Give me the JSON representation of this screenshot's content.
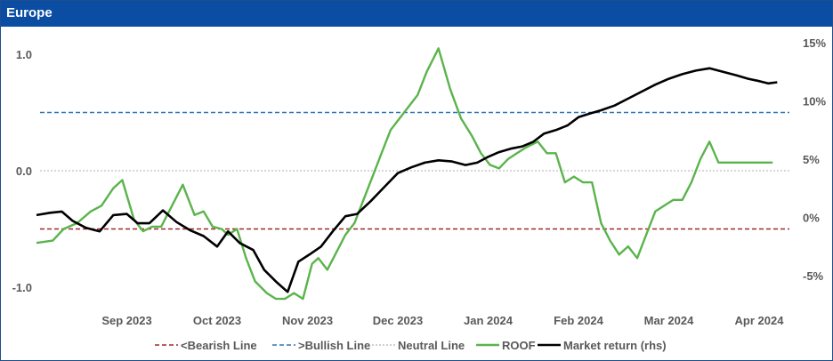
{
  "title": "Europe",
  "chart_data": {
    "type": "line",
    "y_left": {
      "ticks": [
        1.0,
        0.0,
        -1.0
      ],
      "tick_labels": [
        "1.0",
        "0.0",
        "-1.0"
      ],
      "range": [
        -1.3,
        1.0
      ]
    },
    "y_right": {
      "ticks": [
        15,
        10,
        5,
        0,
        -5
      ],
      "tick_labels": [
        "15%",
        "10%",
        "5%",
        "0%",
        "-5%"
      ],
      "range": [
        -7.5,
        15
      ]
    },
    "x_labels": [
      "Sep 2023",
      "Oct 2023",
      "Nov 2023",
      "Dec 2023",
      "Jan 2024",
      "Feb 2024",
      "Mar 2024",
      "Apr 2024"
    ],
    "x_range": [
      0,
      8.3
    ],
    "x_label_positions": [
      1,
      2,
      3,
      4,
      5,
      6,
      7,
      8
    ],
    "reference_lines": [
      {
        "name": "<Bearish Line",
        "axis": "left",
        "value": -0.5,
        "color": "#a02828",
        "style": "dashed"
      },
      {
        "name": ">Bullish Line",
        "axis": "left",
        "value": 0.5,
        "color": "#2e74b5",
        "style": "dashed"
      },
      {
        "name": "Neutral Line",
        "axis": "left",
        "value": 0.0,
        "color": "#bfbfbf",
        "style": "dotted"
      }
    ],
    "series": [
      {
        "name": "ROOF",
        "axis": "left",
        "color": "#5ab44b",
        "x": [
          0,
          0.18,
          0.3,
          0.45,
          0.6,
          0.72,
          0.85,
          0.95,
          1.08,
          1.18,
          1.28,
          1.38,
          1.5,
          1.62,
          1.75,
          1.85,
          1.95,
          2.05,
          2.12,
          2.22,
          2.32,
          2.42,
          2.55,
          2.65,
          2.75,
          2.85,
          2.95,
          3.05,
          3.12,
          3.22,
          3.32,
          3.42,
          3.52,
          3.62,
          3.72,
          3.82,
          3.92,
          4.02,
          4.12,
          4.22,
          4.32,
          4.45,
          4.58,
          4.7,
          4.82,
          4.92,
          5.02,
          5.12,
          5.22,
          5.32,
          5.42,
          5.55,
          5.65,
          5.75,
          5.85,
          5.95,
          6.05,
          6.15,
          6.25,
          6.35,
          6.45,
          6.55,
          6.65,
          6.75,
          6.85,
          6.95,
          7.05,
          7.15,
          7.25,
          7.35,
          7.45,
          7.55,
          7.65,
          7.75,
          7.85,
          7.95,
          8.05,
          8.15
        ],
        "values": [
          -0.62,
          -0.6,
          -0.5,
          -0.45,
          -0.35,
          -0.3,
          -0.15,
          -0.08,
          -0.42,
          -0.52,
          -0.48,
          -0.48,
          -0.3,
          -0.12,
          -0.38,
          -0.35,
          -0.48,
          -0.5,
          -0.55,
          -0.5,
          -0.75,
          -0.95,
          -1.05,
          -1.1,
          -1.1,
          -1.05,
          -1.1,
          -0.8,
          -0.75,
          -0.85,
          -0.7,
          -0.55,
          -0.45,
          -0.25,
          -0.05,
          0.15,
          0.35,
          0.45,
          0.55,
          0.65,
          0.85,
          1.05,
          0.7,
          0.45,
          0.3,
          0.15,
          0.05,
          0.02,
          0.1,
          0.15,
          0.2,
          0.25,
          0.15,
          0.15,
          -0.1,
          -0.05,
          -0.1,
          -0.1,
          -0.45,
          -0.6,
          -0.72,
          -0.65,
          -0.75,
          -0.55,
          -0.35,
          -0.3,
          -0.25,
          -0.25,
          -0.1,
          0.1,
          0.25,
          0.07,
          0.07,
          0.07,
          0.07,
          0.07,
          0.07,
          0.07
        ]
      },
      {
        "name": "Market return (rhs)",
        "axis": "right",
        "color": "#000000",
        "x": [
          0,
          0.15,
          0.28,
          0.4,
          0.55,
          0.7,
          0.85,
          1.0,
          1.12,
          1.25,
          1.4,
          1.55,
          1.7,
          1.85,
          2.0,
          2.12,
          2.25,
          2.4,
          2.52,
          2.65,
          2.78,
          2.9,
          3.02,
          3.15,
          3.28,
          3.42,
          3.55,
          3.7,
          3.85,
          4.0,
          4.15,
          4.3,
          4.45,
          4.6,
          4.75,
          4.88,
          5.0,
          5.12,
          5.25,
          5.38,
          5.5,
          5.62,
          5.75,
          5.88,
          6.0,
          6.12,
          6.25,
          6.4,
          6.55,
          6.7,
          6.85,
          7.0,
          7.15,
          7.3,
          7.45,
          7.6,
          7.75,
          7.88,
          8.0,
          8.1,
          8.2
        ],
        "values": [
          0.2,
          0.4,
          0.5,
          -0.3,
          -0.9,
          -1.2,
          0.2,
          0.3,
          -0.5,
          -0.5,
          0.6,
          -0.4,
          -1.1,
          -1.6,
          -2.5,
          -1.2,
          -2.2,
          -2.8,
          -4.5,
          -5.5,
          -6.4,
          -3.8,
          -3.2,
          -2.5,
          -1.2,
          0.1,
          0.3,
          1.4,
          2.6,
          3.8,
          4.3,
          4.7,
          4.9,
          4.8,
          4.5,
          4.7,
          5.2,
          5.6,
          5.9,
          6.1,
          6.5,
          7.2,
          7.5,
          7.9,
          8.6,
          8.9,
          9.2,
          9.6,
          10.2,
          10.8,
          11.4,
          11.9,
          12.3,
          12.6,
          12.8,
          12.5,
          12.2,
          11.9,
          11.7,
          11.5,
          11.6
        ]
      }
    ],
    "legend": {
      "position": "bottom",
      "items": [
        "<Bearish Line",
        ">Bullish Line",
        "Neutral Line",
        "ROOF",
        "Market return (rhs)"
      ]
    }
  }
}
